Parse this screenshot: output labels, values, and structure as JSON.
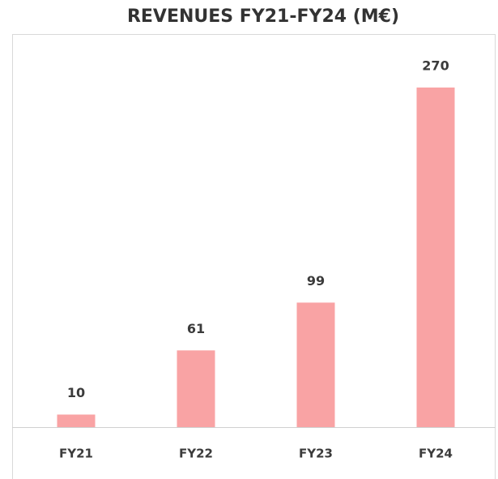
{
  "chart_data": {
    "type": "bar",
    "title": "REVENUES FY21-FY24 (M€)",
    "categories": [
      "FY21",
      "FY22",
      "FY23",
      "FY24"
    ],
    "values": [
      10,
      61,
      99,
      270
    ],
    "color": "#f9a3a4"
  }
}
